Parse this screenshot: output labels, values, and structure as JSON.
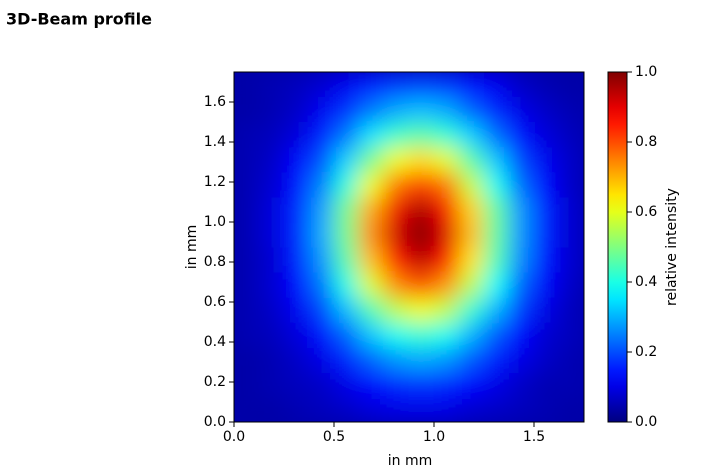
{
  "page_title": "3D-Beam profile",
  "chart_data": {
    "type": "heatmap",
    "xlabel": "in mm",
    "ylabel": "in mm",
    "colorbar_label": "relative intensity",
    "colormap": "jet",
    "xlim": [
      0,
      1.75
    ],
    "ylim": [
      0,
      1.75
    ],
    "clim": [
      0,
      1
    ],
    "xticks": [
      {
        "value": 0,
        "label": "0.0"
      },
      0.5,
      {
        "value": 1,
        "label": "1.0"
      },
      1.5
    ],
    "yticks": [
      {
        "value": 0,
        "label": "0.0"
      },
      0.2,
      0.4,
      0.6,
      0.8,
      {
        "value": 1,
        "label": "1.0"
      },
      1.2,
      1.4,
      1.6
    ],
    "cticks": [
      {
        "value": 0,
        "label": "0.0"
      },
      0.2,
      0.4,
      0.6,
      0.8,
      {
        "value": 1,
        "label": "1.0"
      }
    ],
    "z": [
      [
        0.04,
        0.04,
        0.05,
        0.06,
        0.07,
        0.09,
        0.1,
        0.1,
        0.1,
        0.08,
        0.07,
        0.06,
        0.05,
        0.04
      ],
      [
        0.04,
        0.05,
        0.06,
        0.07,
        0.1,
        0.13,
        0.16,
        0.17,
        0.16,
        0.13,
        0.1,
        0.07,
        0.05,
        0.05
      ],
      [
        0.04,
        0.05,
        0.07,
        0.1,
        0.16,
        0.22,
        0.27,
        0.29,
        0.27,
        0.21,
        0.15,
        0.1,
        0.07,
        0.05
      ],
      [
        0.05,
        0.06,
        0.09,
        0.14,
        0.22,
        0.32,
        0.39,
        0.42,
        0.39,
        0.3,
        0.21,
        0.13,
        0.08,
        0.06
      ],
      [
        0.05,
        0.07,
        0.11,
        0.19,
        0.31,
        0.45,
        0.56,
        0.61,
        0.56,
        0.42,
        0.3,
        0.18,
        0.1,
        0.06
      ],
      [
        0.05,
        0.08,
        0.13,
        0.24,
        0.4,
        0.59,
        0.74,
        0.8,
        0.73,
        0.56,
        0.38,
        0.22,
        0.12,
        0.07
      ],
      [
        0.05,
        0.08,
        0.15,
        0.27,
        0.46,
        0.69,
        0.86,
        0.94,
        0.86,
        0.65,
        0.45,
        0.26,
        0.14,
        0.08
      ],
      [
        0.05,
        0.09,
        0.16,
        0.29,
        0.49,
        0.74,
        0.92,
        1.0,
        0.91,
        0.69,
        0.47,
        0.27,
        0.15,
        0.08
      ],
      [
        0.05,
        0.09,
        0.16,
        0.28,
        0.49,
        0.71,
        0.89,
        0.96,
        0.88,
        0.67,
        0.47,
        0.27,
        0.15,
        0.08
      ],
      [
        0.05,
        0.08,
        0.14,
        0.25,
        0.41,
        0.61,
        0.76,
        0.82,
        0.76,
        0.57,
        0.39,
        0.23,
        0.13,
        0.07
      ],
      [
        0.05,
        0.07,
        0.12,
        0.2,
        0.33,
        0.49,
        0.61,
        0.66,
        0.6,
        0.46,
        0.32,
        0.19,
        0.11,
        0.07
      ],
      [
        0.05,
        0.06,
        0.09,
        0.15,
        0.24,
        0.35,
        0.43,
        0.46,
        0.42,
        0.33,
        0.23,
        0.14,
        0.09,
        0.06
      ],
      [
        0.04,
        0.05,
        0.07,
        0.11,
        0.17,
        0.24,
        0.29,
        0.31,
        0.29,
        0.22,
        0.16,
        0.1,
        0.07,
        0.05
      ],
      [
        0.04,
        0.05,
        0.06,
        0.08,
        0.11,
        0.15,
        0.18,
        0.19,
        0.18,
        0.14,
        0.11,
        0.07,
        0.05,
        0.04
      ]
    ]
  }
}
